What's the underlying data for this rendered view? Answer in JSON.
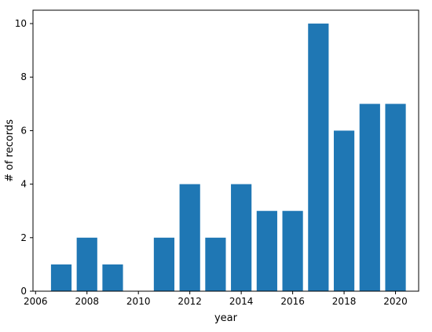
{
  "chart_data": {
    "type": "bar",
    "title": "",
    "xlabel": "year",
    "ylabel": "# of records",
    "x": [
      2007,
      2008,
      2009,
      2011,
      2012,
      2013,
      2014,
      2015,
      2016,
      2017,
      2018,
      2019,
      2020
    ],
    "values": [
      1,
      2,
      1,
      2,
      4,
      2,
      4,
      3,
      3,
      10,
      6,
      7,
      7
    ],
    "xlim": [
      2005.9,
      2020.9
    ],
    "ylim": [
      0,
      10.5
    ],
    "xticks": [
      2006,
      2008,
      2010,
      2012,
      2014,
      2016,
      2018,
      2020
    ],
    "yticks": [
      0,
      2,
      4,
      6,
      8,
      10
    ],
    "bar_width": 0.8,
    "bar_color": "#1f77b4",
    "grid": false,
    "legend": "none"
  }
}
